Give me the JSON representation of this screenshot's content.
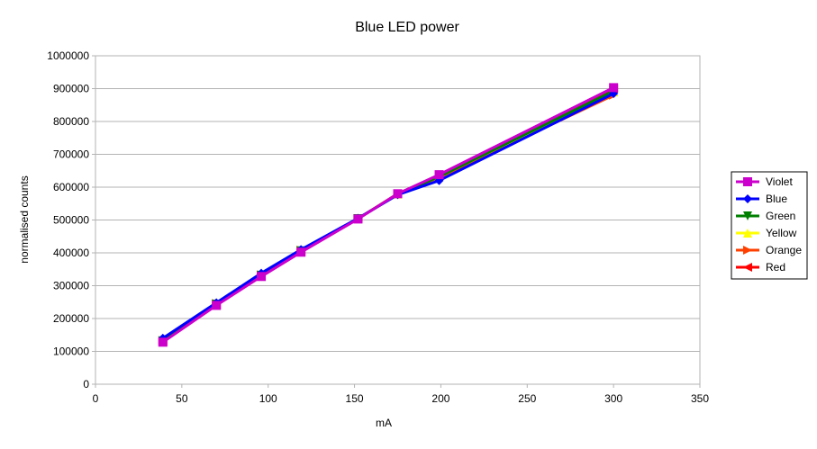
{
  "chart_data": {
    "type": "line",
    "title": "Blue LED power",
    "xlabel": "mA",
    "ylabel": "normalised counts",
    "xlim": [
      0,
      350
    ],
    "ylim": [
      0,
      1000000
    ],
    "xticks": [
      0,
      50,
      100,
      150,
      200,
      250,
      300,
      350
    ],
    "yticks": [
      0,
      100000,
      200000,
      300000,
      400000,
      500000,
      600000,
      700000,
      800000,
      900000,
      1000000
    ],
    "grid": "horizontal",
    "legend_position": "right",
    "series": [
      {
        "name": "Violet",
        "color": "#cc00cc",
        "marker": "square",
        "points": [
          [
            39,
            128000
          ],
          [
            70,
            240000
          ],
          [
            96,
            328000
          ],
          [
            119,
            402000
          ],
          [
            152,
            503000
          ],
          [
            175,
            580000
          ],
          [
            199,
            638000
          ],
          [
            300,
            903000
          ]
        ]
      },
      {
        "name": "Blue",
        "color": "#0000ff",
        "marker": "diamond",
        "points": [
          [
            39,
            140000
          ],
          [
            70,
            248000
          ],
          [
            96,
            338000
          ],
          [
            119,
            410000
          ],
          [
            152,
            505000
          ],
          [
            175,
            577000
          ],
          [
            199,
            620000
          ],
          [
            300,
            885000
          ]
        ]
      },
      {
        "name": "Green",
        "color": "#008000",
        "marker": "triangle-down",
        "points": [
          [
            39,
            132000
          ],
          [
            70,
            244000
          ],
          [
            96,
            332000
          ],
          [
            119,
            406000
          ],
          [
            152,
            504000
          ],
          [
            175,
            579000
          ],
          [
            199,
            632000
          ],
          [
            300,
            893000
          ]
        ]
      },
      {
        "name": "Yellow",
        "color": "#ffff00",
        "marker": "triangle-up",
        "points": [
          [
            39,
            131000
          ],
          [
            70,
            243000
          ],
          [
            96,
            331000
          ],
          [
            119,
            405000
          ],
          [
            152,
            504000
          ],
          [
            175,
            579000
          ],
          [
            199,
            633000
          ],
          [
            300,
            890000
          ]
        ]
      },
      {
        "name": "Orange",
        "color": "#ff4000",
        "marker": "triangle-right",
        "points": [
          [
            39,
            133000
          ],
          [
            70,
            246000
          ],
          [
            96,
            333000
          ],
          [
            119,
            408000
          ],
          [
            152,
            504000
          ],
          [
            175,
            579000
          ],
          [
            199,
            630000
          ],
          [
            300,
            880000
          ]
        ]
      },
      {
        "name": "Red",
        "color": "#ff0000",
        "marker": "triangle-left",
        "points": [
          [
            39,
            130000
          ],
          [
            70,
            242000
          ],
          [
            96,
            330000
          ],
          [
            119,
            404000
          ],
          [
            152,
            504000
          ],
          [
            175,
            580000
          ],
          [
            199,
            636000
          ],
          [
            300,
            900000
          ]
        ]
      }
    ],
    "draw_order": [
      "Red",
      "Orange",
      "Yellow",
      "Green",
      "Blue",
      "Violet"
    ]
  }
}
